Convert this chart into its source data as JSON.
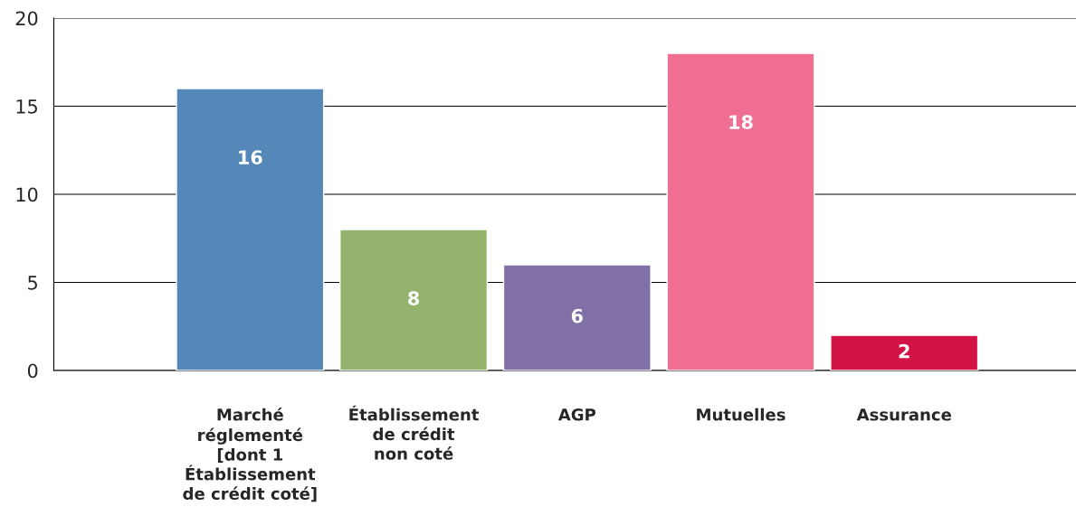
{
  "chart_data": {
    "type": "bar",
    "categories": [
      "Marché\nréglementé\n[dont 1\nÉtablissement\nde crédit coté]",
      "Établissement\nde crédit\nnon coté",
      "AGP",
      "Mutuelles",
      "Assurance"
    ],
    "values": [
      16,
      8,
      6,
      18,
      2
    ],
    "colors": [
      "#5587b9",
      "#93b36d",
      "#8170a6",
      "#ef6e91",
      "#d31245"
    ],
    "ylim": [
      0,
      20
    ],
    "yticks": [
      0,
      5,
      10,
      15,
      20
    ],
    "grid": "y",
    "data_labels": true
  }
}
